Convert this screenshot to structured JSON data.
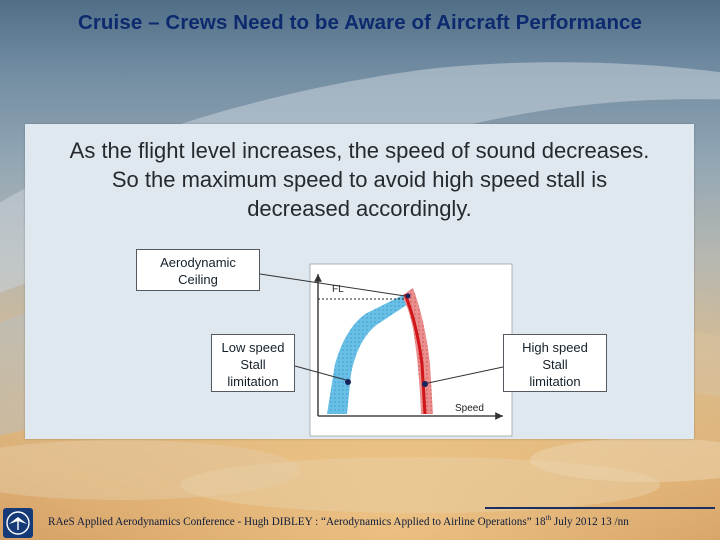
{
  "slide": {
    "title": "Cruise – Crews Need to be Aware of Aircraft Performance"
  },
  "panel": {
    "text_lines": [
      "As the flight level increases, the speed of sound decreases.",
      "So the maximum speed to avoid high speed stall is",
      "decreased accordingly."
    ]
  },
  "diagram": {
    "axis_y_label": "FL",
    "axis_x_label": "Speed",
    "callouts": {
      "aerodynamic_ceiling": [
        "Aerodynamic",
        "Ceiling"
      ],
      "low_speed": [
        "Low speed",
        "Stall",
        "limitation"
      ],
      "high_speed": [
        "High speed",
        "Stall",
        "limitation"
      ]
    },
    "colors": {
      "low_speed_band": "#5ab4e0",
      "high_speed_band": "#e27d7d",
      "high_speed_line": "#d0151a",
      "ceiling_line": "#222222"
    }
  },
  "footer": {
    "text_main": "RAeS Applied Aerodynamics Conference  -  Hugh DIBLEY :  “Aerodynamics Applied to Airline Operations”  18",
    "text_sup": "th",
    "text_tail": " July  2012  13 /nn",
    "logo_icon": "society-logo-icon"
  }
}
